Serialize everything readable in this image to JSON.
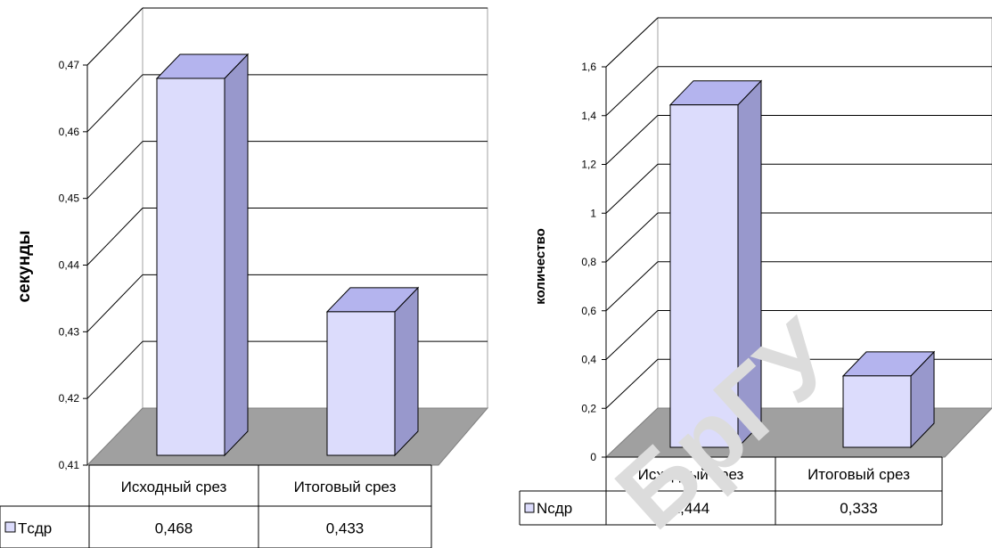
{
  "chart_data": [
    {
      "type": "bar",
      "categories": [
        "Исходный срез",
        "Итоговый срез"
      ],
      "series": [
        {
          "name": "Tсдр",
          "values": [
            0.468,
            0.433
          ]
        }
      ],
      "data_labels": [
        "0,468",
        "0,433"
      ],
      "ylabel": "секунды",
      "ylim": [
        0.41,
        0.47
      ],
      "yticks": [
        "0,41",
        "0,42",
        "0,43",
        "0,44",
        "0,45",
        "0,46",
        "0,47"
      ],
      "grid": true,
      "legend": "data-table-left",
      "style": "3d"
    },
    {
      "type": "bar",
      "categories": [
        "Исходный срез",
        "Итоговый срез"
      ],
      "series": [
        {
          "name": "Nсдр",
          "values": [
            1.444,
            0.333
          ]
        }
      ],
      "data_labels": [
        "1,444",
        "0,333"
      ],
      "ylabel": "количество",
      "ylim": [
        0,
        1.6
      ],
      "yticks": [
        "0",
        "0,2",
        "0,4",
        "0,6",
        "0,8",
        "1",
        "1,2",
        "1,4",
        "1,6"
      ],
      "grid": true,
      "legend": "data-table-left",
      "style": "3d"
    }
  ],
  "watermark": "БрГУ",
  "colors": {
    "bar_front": "#dcdcfc",
    "bar_side": "#9898cc",
    "bar_top": "#b4b4ee",
    "floor": "#a0a0a0",
    "walls": "#ffffff",
    "lines": "#000000"
  }
}
